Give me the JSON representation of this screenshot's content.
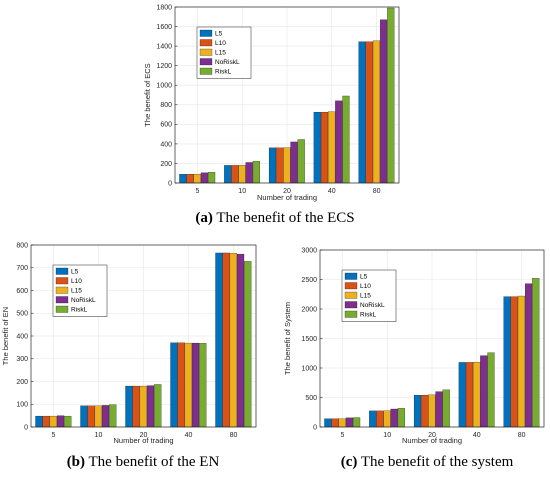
{
  "colors": [
    "#0072BD",
    "#D95319",
    "#EDB120",
    "#7E2F8E",
    "#77AC30"
  ],
  "chart_data": [
    {
      "type": "bar",
      "id": "a",
      "caption_label": "(a)",
      "caption_text": "The benefit of the ECS",
      "xlabel": "Number of trading",
      "ylabel": "The benefit of ECS",
      "categories": [
        "5",
        "10",
        "20",
        "40",
        "80"
      ],
      "ylim": [
        0,
        1800
      ],
      "yticks": [
        0,
        200,
        400,
        600,
        800,
        1000,
        1200,
        1400,
        1600,
        1800
      ],
      "grid": true,
      "legend_position": "top-left",
      "series": [
        {
          "name": "L5",
          "values": [
            90,
            180,
            360,
            725,
            1445
          ]
        },
        {
          "name": "L10",
          "values": [
            90,
            180,
            360,
            725,
            1445
          ]
        },
        {
          "name": "L15",
          "values": [
            91,
            182,
            362,
            730,
            1455
          ]
        },
        {
          "name": "NoRiskL",
          "values": [
            105,
            210,
            420,
            840,
            1670
          ]
        },
        {
          "name": "RiskL",
          "values": [
            110,
            222,
            445,
            890,
            1790
          ]
        }
      ]
    },
    {
      "type": "bar",
      "id": "b",
      "caption_label": "(b)",
      "caption_text": "The benefit of the EN",
      "xlabel": "Number of trading",
      "ylabel": "The benefit of EN",
      "categories": [
        "5",
        "10",
        "20",
        "40",
        "80"
      ],
      "ylim": [
        0,
        800
      ],
      "yticks": [
        0,
        100,
        200,
        300,
        400,
        500,
        600,
        700,
        800
      ],
      "grid": true,
      "legend_position": "top-left",
      "series": [
        {
          "name": "L5",
          "values": [
            48,
            93,
            180,
            370,
            765
          ]
        },
        {
          "name": "L10",
          "values": [
            48,
            93,
            180,
            370,
            765
          ]
        },
        {
          "name": "L15",
          "values": [
            48,
            93,
            180,
            369,
            764
          ]
        },
        {
          "name": "NoRiskL",
          "values": [
            50,
            95,
            182,
            369,
            760
          ]
        },
        {
          "name": "RiskL",
          "values": [
            48,
            98,
            187,
            368,
            728
          ]
        }
      ]
    },
    {
      "type": "bar",
      "id": "c",
      "caption_label": "(c)",
      "caption_text": "The benefit of the system",
      "xlabel": "Number of trading",
      "ylabel": "The benefit of System",
      "categories": [
        "5",
        "10",
        "20",
        "40",
        "80"
      ],
      "ylim": [
        0,
        3000
      ],
      "yticks": [
        0,
        500,
        1000,
        1500,
        2000,
        2500,
        3000
      ],
      "grid": true,
      "legend_position": "top-left",
      "series": [
        {
          "name": "L5",
          "values": [
            140,
            273,
            540,
            1095,
            2210
          ]
        },
        {
          "name": "L10",
          "values": [
            140,
            273,
            540,
            1095,
            2210
          ]
        },
        {
          "name": "L15",
          "values": [
            141,
            275,
            545,
            1100,
            2220
          ]
        },
        {
          "name": "NoRiskL",
          "values": [
            155,
            305,
            600,
            1210,
            2430
          ]
        },
        {
          "name": "RiskL",
          "values": [
            160,
            318,
            630,
            1260,
            2520
          ]
        }
      ]
    }
  ]
}
